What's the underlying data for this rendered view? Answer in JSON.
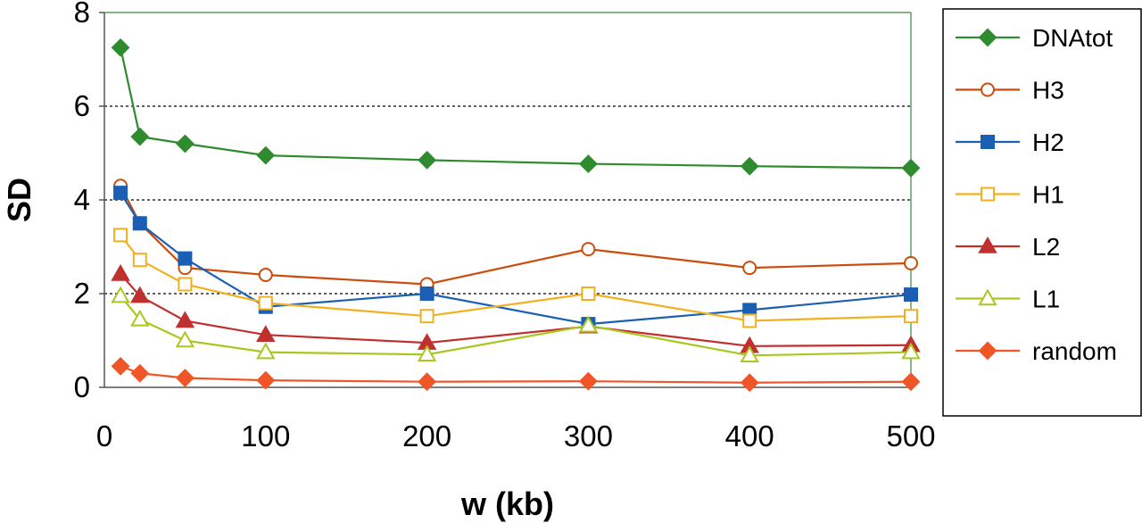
{
  "chart_data": {
    "type": "line",
    "xlabel": "w (kb)",
    "ylabel": "SD",
    "xlim": [
      0,
      500
    ],
    "ylim": [
      0,
      8
    ],
    "x_ticks": [
      0,
      100,
      200,
      300,
      400,
      500
    ],
    "y_ticks": [
      0,
      2,
      4,
      6,
      8
    ],
    "grid": "horizontal dotted at 2, 4, 6",
    "legend_position": "right",
    "x": [
      10,
      22,
      50,
      100,
      200,
      300,
      400,
      500
    ],
    "series": [
      {
        "name": "DNAtot",
        "color": "#2e8b2e",
        "marker": "diamond",
        "filled": true,
        "values": [
          7.25,
          5.35,
          5.2,
          4.95,
          4.85,
          4.77,
          4.72,
          4.68
        ]
      },
      {
        "name": "H3",
        "color": "#cc4c0c",
        "marker": "circle",
        "filled": false,
        "values": [
          4.3,
          3.5,
          2.55,
          2.4,
          2.2,
          2.95,
          2.55,
          2.65
        ]
      },
      {
        "name": "H2",
        "color": "#1a5fb4",
        "marker": "square",
        "filled": true,
        "values": [
          4.15,
          3.5,
          2.75,
          1.72,
          2.0,
          1.35,
          1.65,
          1.98
        ]
      },
      {
        "name": "H1",
        "color": "#f0b020",
        "marker": "square",
        "filled": false,
        "values": [
          3.25,
          2.72,
          2.2,
          1.8,
          1.52,
          2.0,
          1.42,
          1.52
        ]
      },
      {
        "name": "L2",
        "color": "#c0302e",
        "marker": "triangle",
        "filled": true,
        "values": [
          2.42,
          1.95,
          1.42,
          1.12,
          0.95,
          1.3,
          0.88,
          0.9
        ]
      },
      {
        "name": "L1",
        "color": "#a8c820",
        "marker": "triangle",
        "filled": false,
        "values": [
          1.95,
          1.45,
          1.0,
          0.75,
          0.7,
          1.32,
          0.68,
          0.75
        ]
      },
      {
        "name": "random",
        "color": "#f05528",
        "marker": "diamond",
        "filled": true,
        "values": [
          0.45,
          0.3,
          0.2,
          0.15,
          0.12,
          0.13,
          0.1,
          0.12
        ]
      }
    ]
  }
}
